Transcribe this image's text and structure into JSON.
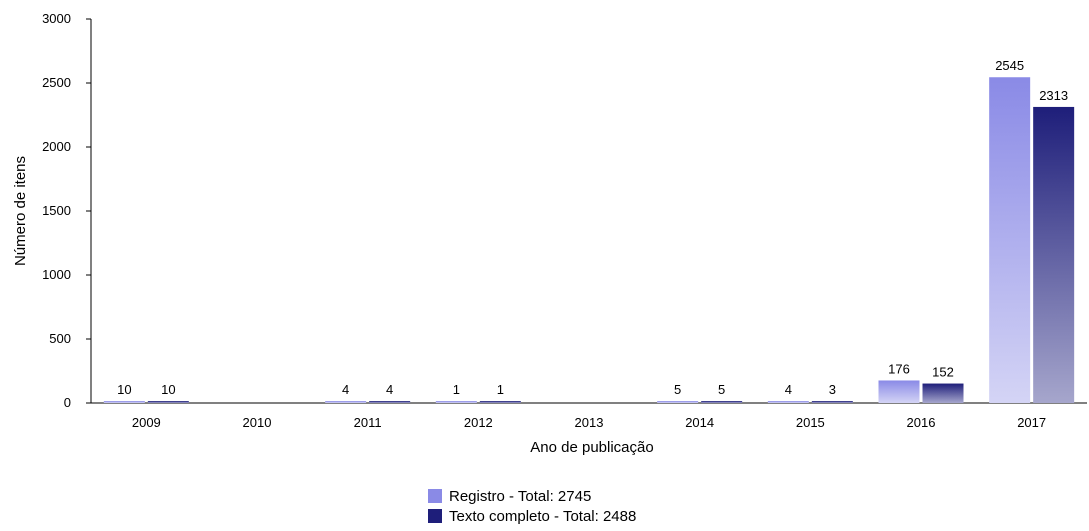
{
  "chart_data": {
    "type": "bar",
    "title": "",
    "xlabel": "Ano de publicação",
    "ylabel": "Número de itens",
    "categories": [
      "2009",
      "2010",
      "2011",
      "2012",
      "2013",
      "2014",
      "2015",
      "2016",
      "2017"
    ],
    "ylim": [
      0,
      3000
    ],
    "yticks": [
      0,
      500,
      1000,
      1500,
      2000,
      2500,
      3000
    ],
    "grid": false,
    "legend_position": "bottom-center",
    "series": [
      {
        "name": "Registro",
        "values": [
          10,
          0,
          4,
          1,
          0,
          5,
          4,
          176,
          2545
        ],
        "labels": [
          "10",
          "",
          "4",
          "1",
          "",
          "5",
          "4",
          "176",
          "2545"
        ],
        "color_top": "#8a8ae6",
        "color_bottom": "#d4d4f5"
      },
      {
        "name": "Texto completo",
        "values": [
          10,
          0,
          4,
          1,
          0,
          5,
          3,
          152,
          2313
        ],
        "labels": [
          "10",
          "",
          "4",
          "1",
          "",
          "5",
          "3",
          "152",
          "2313"
        ],
        "color_top": "#1e1e7a",
        "color_bottom": "#a6a6cc"
      }
    ]
  },
  "legend": {
    "items": [
      {
        "label": "Registro - Total: 2745",
        "color": "#8a8ae6"
      },
      {
        "label": "Texto completo - Total: 2488",
        "color": "#1e1e7a"
      }
    ]
  }
}
